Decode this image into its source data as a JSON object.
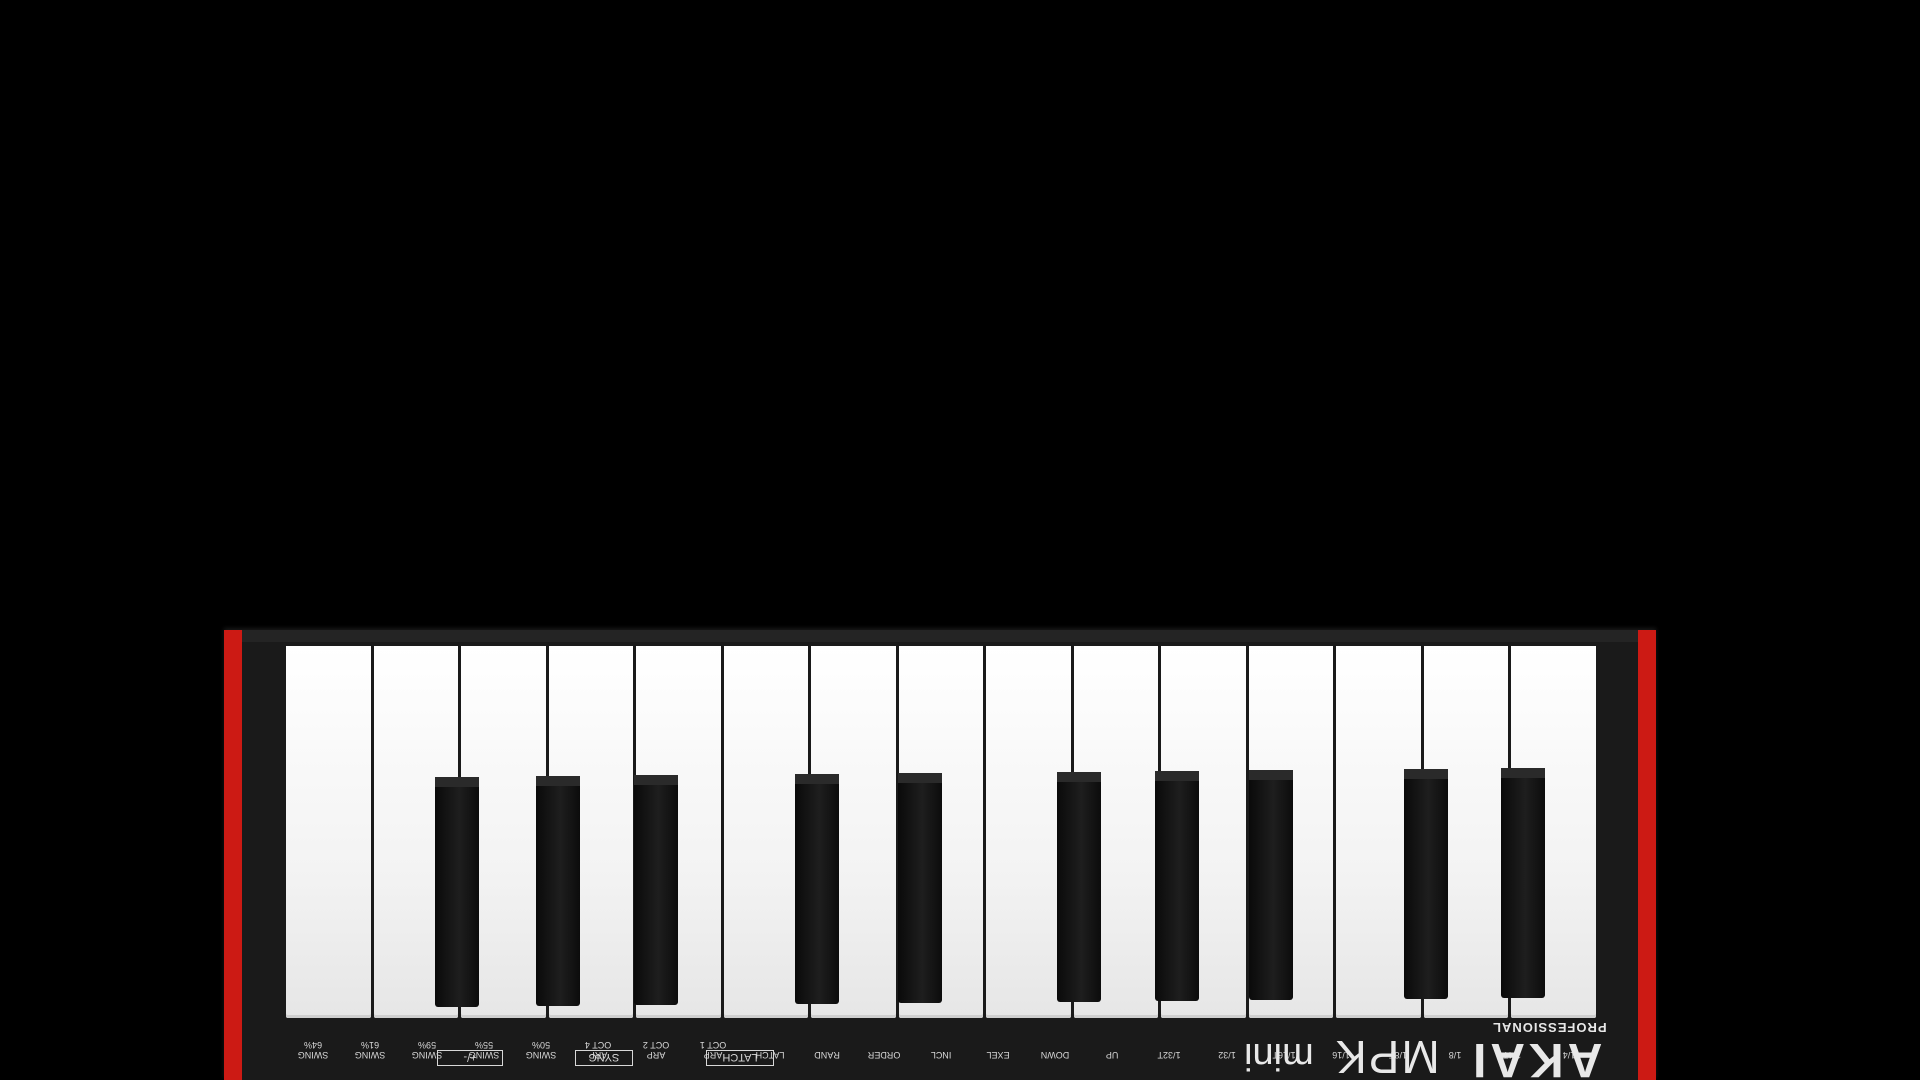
{
  "device": {
    "brand": "AKAI",
    "sub_brand": "PROFESSIONAL",
    "model": "MPK",
    "model_suffix": "mini",
    "accent_color": "#cc1a14"
  },
  "white_key_labels": [
    "SWING\n64%",
    "SWING\n61%",
    "SWING\n59%",
    "SWING\n55%",
    "SWING\n50%",
    "ARP\nOCT 4",
    "ARP\nOCT 2",
    "ARP\nOCT 1",
    "LATCH",
    "RAND",
    "ORDER",
    "INCL",
    "EXEL",
    "DOWN",
    "UP",
    "1/32T",
    "1/32",
    "1/16T",
    "1/16",
    "1/8T",
    "1/8",
    "1/4T",
    "1/4"
  ],
  "function_labels": {
    "plus_minus": "+/-",
    "sync": "SYNC",
    "latch": "LATCH"
  }
}
